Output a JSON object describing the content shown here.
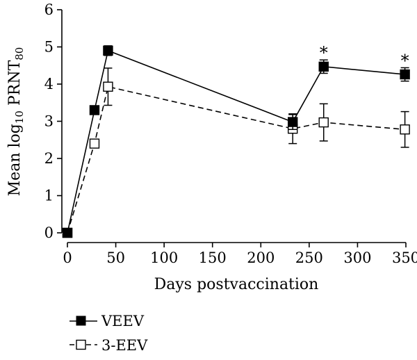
{
  "chart_data": {
    "type": "line",
    "xlabel": "Days postvaccination",
    "ylabel": {
      "prefix": "Mean log",
      "sub1": "10",
      "mid": " PRNT",
      "sub2": "80"
    },
    "xlim": [
      0,
      350
    ],
    "ylim": [
      0,
      6
    ],
    "xticks": [
      "0",
      "50",
      "100",
      "150",
      "200",
      "250",
      "300",
      "350"
    ],
    "yticks": [
      "0",
      "1",
      "2",
      "3",
      "4",
      "5",
      "6"
    ],
    "grid": false,
    "legend_position": "bottom-left",
    "series": [
      {
        "name": "VEEV",
        "marker": "filled-square",
        "line": "solid",
        "x": [
          0,
          28,
          42,
          233,
          265,
          349
        ],
        "y": [
          0,
          3.3,
          4.9,
          2.98,
          4.47,
          4.26
        ],
        "err": [
          0,
          0,
          0.13,
          0.2,
          0.18,
          0.18
        ]
      },
      {
        "name": "3-EEV",
        "marker": "open-square",
        "line": "dashed",
        "x": [
          0,
          28,
          42,
          233,
          265,
          349
        ],
        "y": [
          0,
          2.4,
          3.93,
          2.8,
          2.97,
          2.78
        ],
        "err": [
          0,
          0,
          0.5,
          0.4,
          0.5,
          0.48
        ]
      }
    ],
    "annotations": [
      {
        "text": "*",
        "x": 265,
        "y": 4.47
      },
      {
        "text": "*",
        "x": 349,
        "y": 4.26
      }
    ]
  }
}
